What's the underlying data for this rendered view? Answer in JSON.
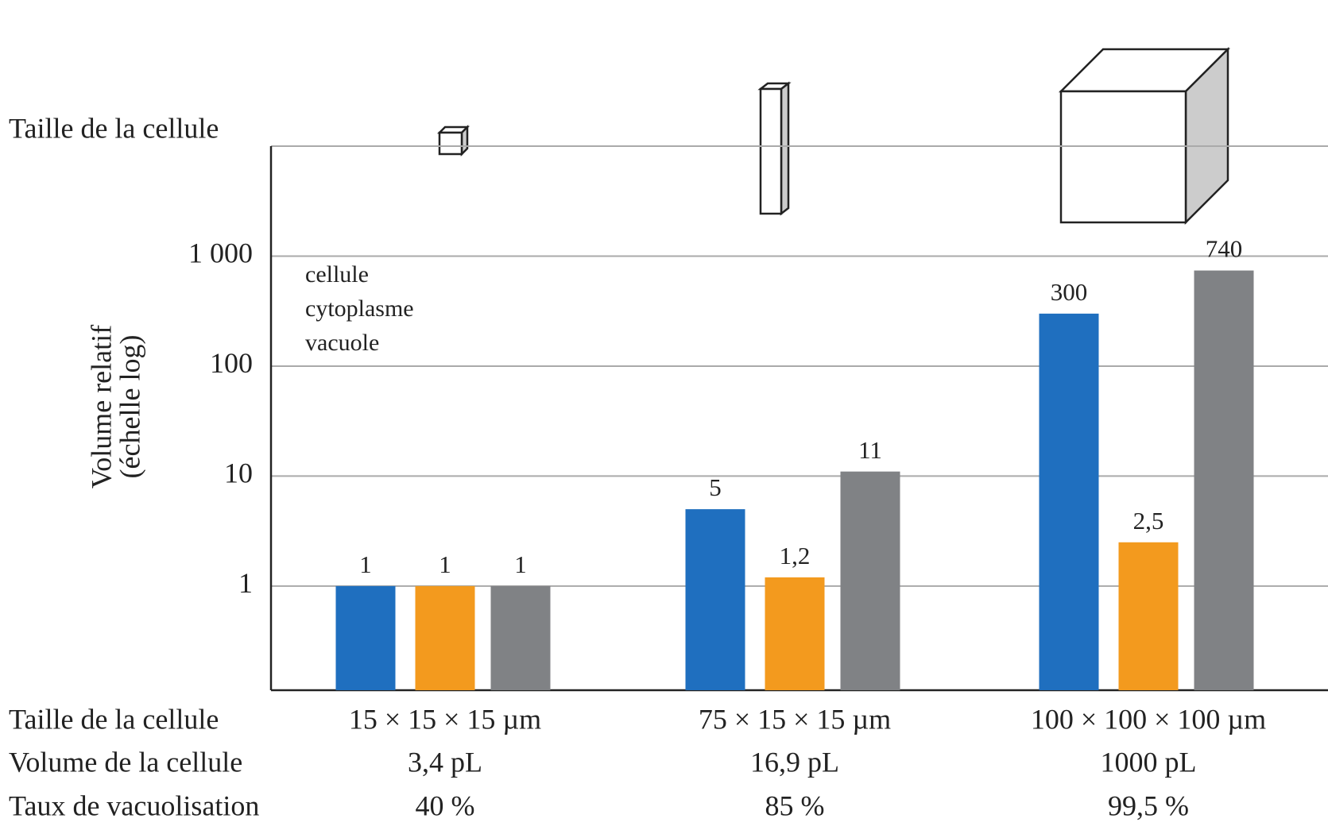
{
  "chart_data": {
    "type": "bar",
    "top_label": "Taille de la cellule",
    "ylabel": [
      "Volume relatif",
      "(échelle log)"
    ],
    "x_label": "Taille de la cellule",
    "categories": [
      "15 × 15 × 15 µm",
      "75 × 15 × 15 µm",
      "100 × 100 × 100 µm"
    ],
    "series": [
      {
        "name": "cellule",
        "color": "#1f6fbf",
        "values": [
          1,
          5,
          300
        ]
      },
      {
        "name": "cytoplasme",
        "color": "#f39a1e",
        "values": [
          1,
          1.2,
          2.5
        ],
        "value_labels": [
          "1",
          "1,2",
          "2,5"
        ]
      },
      {
        "name": "vacuole",
        "color": "#808285",
        "values": [
          1,
          11,
          740
        ]
      }
    ],
    "log_scale": true,
    "ylim": [
      0.113,
      10000
    ],
    "yticks": [
      1,
      10,
      100,
      {
        "value": 1000,
        "label": "1 000"
      }
    ],
    "grid": true,
    "legend": "top-left",
    "table_rows": [
      {
        "label": "Volume de la cellule",
        "cells": [
          "3,4 pL",
          "16,9 pL",
          "1000 pL"
        ]
      },
      {
        "label": "Taux de vacuolisation",
        "cells": [
          "40 %",
          "85 %",
          "99,5 %"
        ]
      }
    ]
  }
}
